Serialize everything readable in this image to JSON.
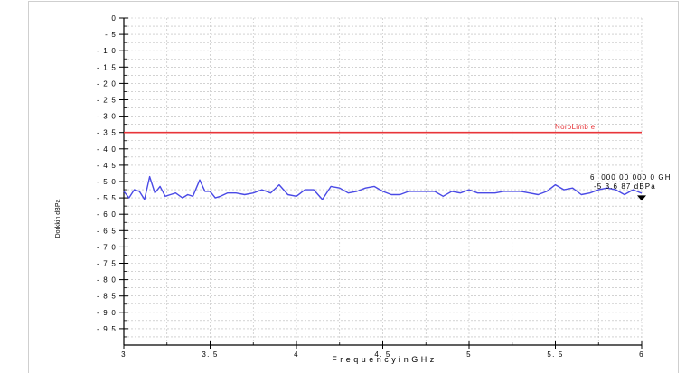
{
  "chart_data": {
    "type": "line",
    "title": "",
    "xlabel": "F r e q u e n c y   i n   G H z",
    "ylabel": "Dorkkin dBPa",
    "xlim": [
      3,
      6
    ],
    "ylim": [
      -100,
      0
    ],
    "x_ticks": [
      "3",
      "3. 5",
      "4",
      "4. 5",
      "5",
      "5. 5",
      "6"
    ],
    "y_ticks": [
      "0",
      "- 5",
      "- 1 0",
      "- 1 5",
      "- 2 0",
      "- 2 5",
      "- 3 0",
      "- 3 5",
      "- 4 0",
      "- 4 5",
      "- 5 0",
      "- 5 5",
      "- 6 0",
      "- 6 5",
      "- 7 0",
      "- 7 5",
      "- 8 0",
      "- 8 5",
      "- 9 0",
      "- 9 5"
    ],
    "grid": true,
    "limit_line": {
      "value": -35,
      "label": "NoroLimb e",
      "color": "#e8353a"
    },
    "series": [
      {
        "color": "#4a4ae6",
        "x": [
          3.0,
          3.03,
          3.06,
          3.09,
          3.12,
          3.15,
          3.18,
          3.21,
          3.24,
          3.27,
          3.3,
          3.34,
          3.37,
          3.4,
          3.44,
          3.47,
          3.5,
          3.53,
          3.56,
          3.6,
          3.65,
          3.7,
          3.75,
          3.8,
          3.85,
          3.9,
          3.95,
          4.0,
          4.05,
          4.1,
          4.15,
          4.2,
          4.25,
          4.3,
          4.35,
          4.4,
          4.45,
          4.5,
          4.55,
          4.6,
          4.65,
          4.7,
          4.75,
          4.8,
          4.85,
          4.9,
          4.95,
          5.0,
          5.05,
          5.1,
          5.15,
          5.2,
          5.25,
          5.3,
          5.35,
          5.4,
          5.45,
          5.5,
          5.55,
          5.6,
          5.65,
          5.7,
          5.75,
          5.8,
          5.85,
          5.9,
          5.95,
          6.0
        ],
        "y": [
          -53.0,
          -55.0,
          -52.5,
          -53.0,
          -55.5,
          -48.5,
          -53.5,
          -51.5,
          -54.5,
          -54.0,
          -53.5,
          -55.0,
          -54.0,
          -54.5,
          -49.5,
          -53.0,
          -53.0,
          -55.0,
          -54.5,
          -53.5,
          -53.5,
          -54.0,
          -53.5,
          -52.5,
          -53.5,
          -51.0,
          -54.0,
          -54.5,
          -52.5,
          -52.5,
          -55.5,
          -51.5,
          -52.0,
          -53.5,
          -53.0,
          -52.0,
          -51.5,
          -53.0,
          -54.0,
          -54.0,
          -53.0,
          -53.0,
          -53.0,
          -53.0,
          -54.5,
          -53.0,
          -53.5,
          -52.5,
          -53.5,
          -53.5,
          -53.5,
          -53.0,
          -53.0,
          -53.0,
          -53.5,
          -54.0,
          -53.0,
          -51.0,
          -52.5,
          -52.0,
          -54.0,
          -53.5,
          -52.5,
          -52.0,
          -52.5,
          -54.0,
          -52.5,
          -53.6
        ]
      }
    ],
    "marker": {
      "x": 6.0,
      "y": -53.687,
      "line1": "6. 000 00 000 0 GH",
      "line2": "-5 3.6 87 dBPa"
    }
  }
}
